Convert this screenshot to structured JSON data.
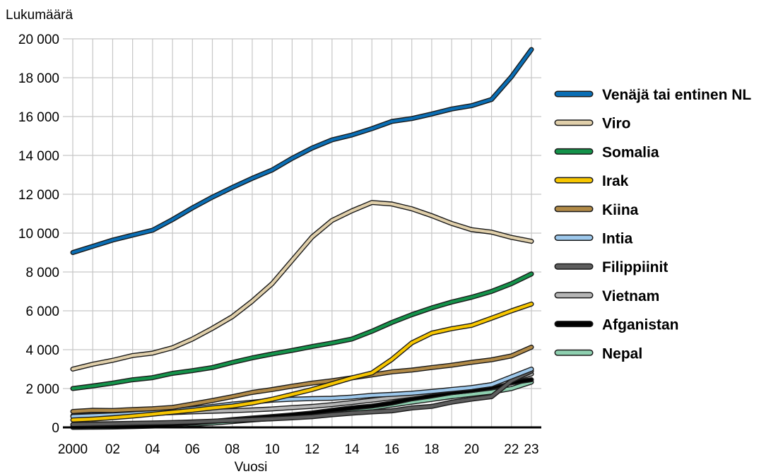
{
  "chart_data": {
    "type": "line",
    "title": "",
    "ylabel": "Lukumäärä",
    "xlabel": "Vuosi",
    "ylim": [
      0,
      20000
    ],
    "yticks": [
      0,
      2000,
      4000,
      6000,
      8000,
      10000,
      12000,
      14000,
      16000,
      18000,
      20000
    ],
    "ytick_labels": [
      "0",
      "2 000",
      "4 000",
      "6 000",
      "8 000",
      "10 000",
      "12 000",
      "14 000",
      "16 000",
      "18 000",
      "20 000"
    ],
    "x": [
      2000,
      2001,
      2002,
      2003,
      2004,
      2005,
      2006,
      2007,
      2008,
      2009,
      2010,
      2011,
      2012,
      2013,
      2014,
      2015,
      2016,
      2017,
      2018,
      2019,
      2020,
      2021,
      2022,
      2023
    ],
    "xticks": [
      2000,
      2002,
      2004,
      2006,
      2008,
      2010,
      2012,
      2014,
      2016,
      2018,
      2020,
      2022,
      2023
    ],
    "xtick_labels": [
      "2000",
      "02",
      "04",
      "06",
      "08",
      "10",
      "12",
      "14",
      "16",
      "18",
      "20",
      "22",
      "23"
    ],
    "grid": true,
    "legend_position": "right",
    "series": [
      {
        "name": "Venäjä tai entinen NL",
        "color": "#0a6eb4",
        "values": [
          9000,
          9320,
          9640,
          9900,
          10150,
          10700,
          11300,
          11850,
          12350,
          12820,
          13250,
          13850,
          14380,
          14800,
          15050,
          15380,
          15750,
          15900,
          16130,
          16390,
          16560,
          16880,
          18050,
          19450
        ]
      },
      {
        "name": "Viro",
        "color": "#e0cfaa",
        "values": [
          3000,
          3250,
          3450,
          3700,
          3820,
          4100,
          4550,
          5100,
          5700,
          6500,
          7400,
          8600,
          9800,
          10650,
          11150,
          11580,
          11500,
          11250,
          10900,
          10500,
          10180,
          10050,
          9780,
          9580
        ]
      },
      {
        "name": "Somalia",
        "color": "#14924a",
        "values": [
          2000,
          2130,
          2280,
          2450,
          2560,
          2780,
          2920,
          3080,
          3340,
          3580,
          3780,
          3960,
          4160,
          4340,
          4550,
          4950,
          5400,
          5800,
          6150,
          6450,
          6700,
          7000,
          7400,
          7900
        ]
      },
      {
        "name": "Irak",
        "color": "#f7c600",
        "values": [
          380,
          430,
          500,
          580,
          680,
          780,
          880,
          1000,
          1100,
          1250,
          1450,
          1700,
          1950,
          2250,
          2550,
          2800,
          3500,
          4350,
          4850,
          5080,
          5250,
          5620,
          6000,
          6350
        ]
      },
      {
        "name": "Kiina",
        "color": "#b18a47",
        "values": [
          820,
          880,
          870,
          920,
          960,
          1030,
          1200,
          1380,
          1580,
          1800,
          1950,
          2120,
          2280,
          2400,
          2550,
          2700,
          2860,
          2950,
          3080,
          3200,
          3350,
          3480,
          3680,
          4130
        ]
      },
      {
        "name": "Intia",
        "color": "#9dc8ec",
        "values": [
          560,
          600,
          640,
          700,
          760,
          860,
          960,
          1080,
          1200,
          1300,
          1400,
          1450,
          1480,
          1500,
          1560,
          1650,
          1700,
          1760,
          1850,
          1950,
          2050,
          2200,
          2600,
          3000
        ]
      },
      {
        "name": "Filippiinit",
        "color": "#5d5d5d",
        "values": [
          150,
          170,
          190,
          210,
          230,
          250,
          280,
          320,
          360,
          400,
          440,
          490,
          550,
          650,
          730,
          800,
          850,
          1000,
          1080,
          1300,
          1450,
          1580,
          2400,
          2900
        ]
      },
      {
        "name": "Vietnam",
        "color": "#b5b5b5",
        "values": [
          600,
          620,
          650,
          680,
          720,
          760,
          800,
          830,
          860,
          900,
          950,
          1020,
          1080,
          1170,
          1280,
          1400,
          1520,
          1650,
          1800,
          1930,
          2030,
          2200,
          2450,
          2750
        ]
      },
      {
        "name": "Afganistan",
        "color": "#000000",
        "values": [
          50,
          60,
          70,
          80,
          100,
          150,
          220,
          300,
          400,
          480,
          560,
          640,
          740,
          880,
          1000,
          1100,
          1250,
          1470,
          1620,
          1790,
          1900,
          2050,
          2300,
          2450
        ]
      },
      {
        "name": "Nepal",
        "color": "#8ed0b0",
        "values": [
          0,
          10,
          20,
          40,
          70,
          110,
          160,
          220,
          300,
          380,
          460,
          560,
          660,
          770,
          880,
          1000,
          1150,
          1300,
          1440,
          1580,
          1700,
          1820,
          2000,
          2330
        ]
      }
    ]
  }
}
